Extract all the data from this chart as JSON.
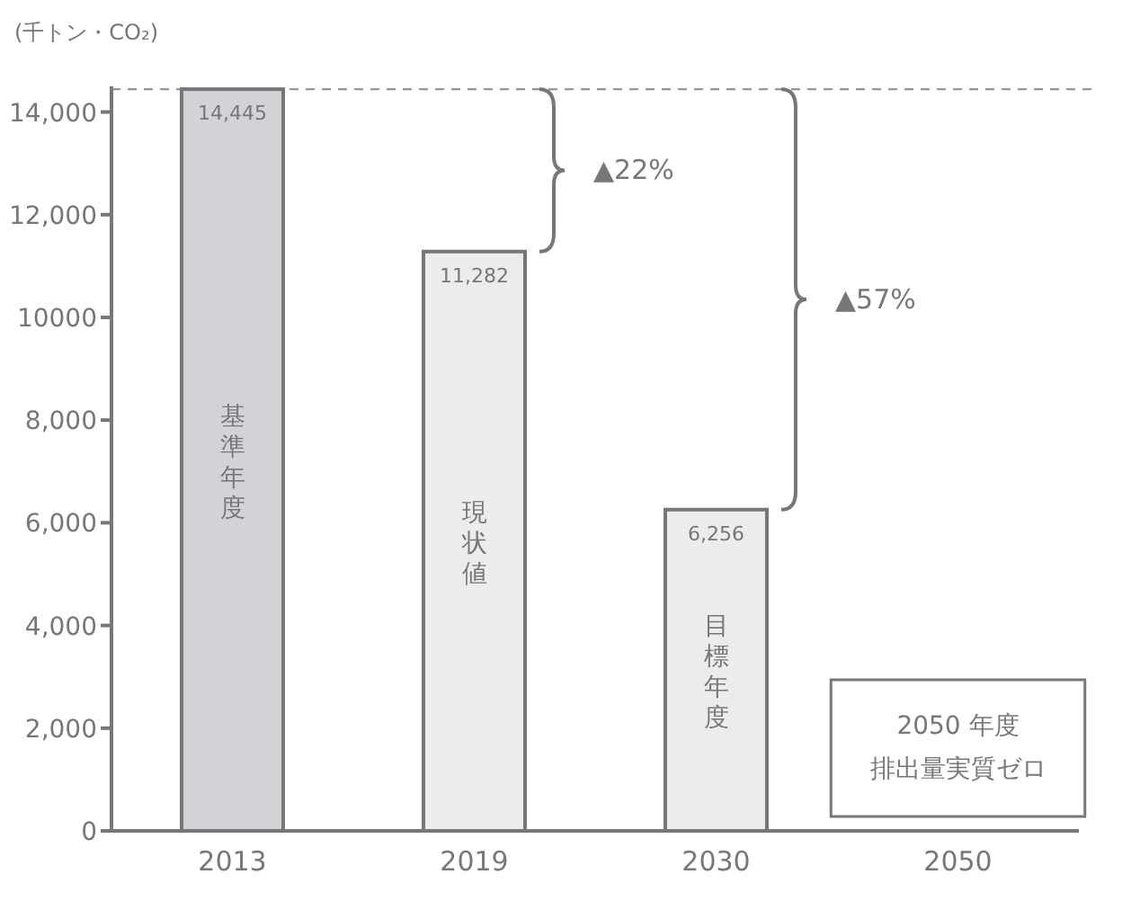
{
  "chart_data": {
    "type": "bar",
    "ylabel": "(千トン・CO₂)",
    "categories": [
      "2013",
      "2019",
      "2030",
      "2050"
    ],
    "values": [
      14445,
      11282,
      6256,
      null
    ],
    "value_labels": [
      "14,445",
      "11,282",
      "6,256",
      null
    ],
    "colors": [
      "#d3d2d6",
      "#ecebee",
      "#ecebee",
      null
    ],
    "ylim": [
      0,
      14500
    ],
    "yticks": [
      0,
      {
        "value": 2000,
        "label": "2,000"
      },
      {
        "value": 4000,
        "label": "4,000"
      },
      {
        "value": 6000,
        "label": "6,000"
      },
      {
        "value": 8000,
        "label": "8,000"
      },
      10000,
      {
        "value": 12000,
        "label": "12,000"
      },
      {
        "value": 14000,
        "label": "14,000"
      }
    ],
    "grid": false,
    "ref_lines": [
      {
        "axis": "y",
        "value": 14445,
        "line_style": "dashed",
        "color": "#888888"
      }
    ],
    "annotations": [
      "▲22%",
      "▲57%",
      "基準年度",
      "現状値",
      "目標年度",
      "2050 年度",
      "排出量実質ゼロ"
    ]
  }
}
